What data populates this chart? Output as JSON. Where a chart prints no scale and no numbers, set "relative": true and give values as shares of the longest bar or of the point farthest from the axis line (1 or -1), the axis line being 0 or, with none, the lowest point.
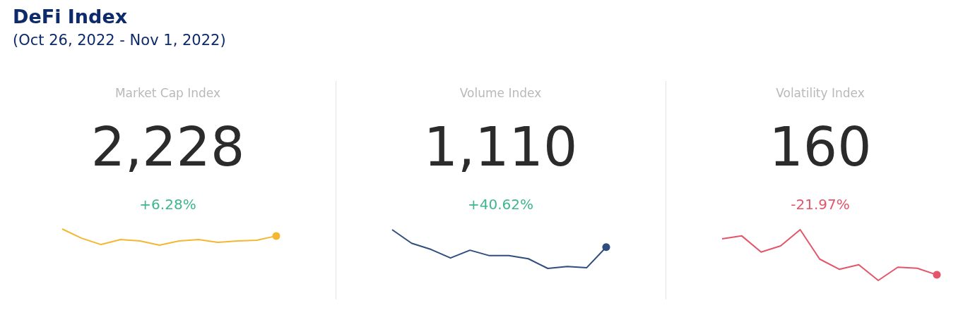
{
  "chart_data": [
    {
      "type": "other",
      "title": "DeFi Index",
      "subtitle": "(Oct 26, 2022 - Nov 1, 2022)"
    },
    {
      "type": "line",
      "title": "Market Cap Index",
      "annotations": [
        "2,228",
        "+6.28%"
      ],
      "categories": [
        null,
        null,
        null,
        null,
        null,
        null,
        null,
        null,
        null,
        null,
        null,
        null
      ],
      "relative": true,
      "series": [
        {
          "color": "#f5b731",
          "values": [
            1,
            0.43,
            0.04,
            0.35,
            0.26,
            0,
            0.26,
            0.35,
            0.17,
            0.26,
            0.3,
            0.57
          ]
        }
      ]
    },
    {
      "type": "line",
      "title": "Volume Index",
      "annotations": [
        "1,110",
        "+40.62%"
      ],
      "categories": [
        null,
        null,
        null,
        null,
        null,
        null,
        null,
        null,
        null,
        null,
        null,
        null
      ],
      "relative": true,
      "series": [
        {
          "color": "#2f4d7e",
          "values": [
            1,
            0.65,
            0.49,
            0.27,
            0.47,
            0.33,
            0.33,
            0.25,
            0,
            0.05,
            0.02,
            0.55
          ]
        }
      ]
    },
    {
      "type": "line",
      "title": "Volatility Index",
      "annotations": [
        "160",
        "-21.97%"
      ],
      "categories": [
        null,
        null,
        null,
        null,
        null,
        null,
        null,
        null,
        null,
        null,
        null,
        null
      ],
      "relative": true,
      "series": [
        {
          "color": "#e5556a",
          "values": [
            0.82,
            0.88,
            0.56,
            0.68,
            1,
            0.42,
            0.22,
            0.31,
            0,
            0.26,
            0.24,
            0.11
          ]
        }
      ]
    }
  ]
}
